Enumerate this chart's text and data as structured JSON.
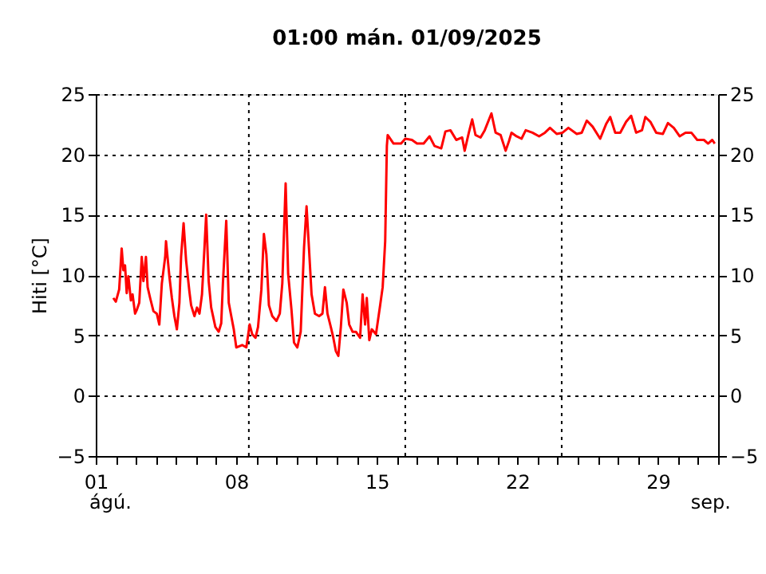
{
  "chart_data": {
    "type": "line",
    "title": "01:00   mán.  01/09/2025",
    "ylabel": "Hiti [°C]",
    "xlim": [
      "2025-08-01",
      "2025-09-01"
    ],
    "xticks": [
      {
        "value": "2025-08-01",
        "label": "01"
      },
      {
        "value": "2025-08-02",
        "label": null
      },
      {
        "value": "2025-08-03",
        "label": null
      },
      {
        "value": "2025-08-04",
        "label": null
      },
      {
        "value": "2025-08-05",
        "label": null
      },
      {
        "value": "2025-08-06",
        "label": null
      },
      {
        "value": "2025-08-07",
        "label": null
      },
      {
        "value": "2025-08-08",
        "label": "08"
      },
      {
        "value": "2025-08-09",
        "label": null
      },
      {
        "value": "2025-08-10",
        "label": null
      },
      {
        "value": "2025-08-11",
        "label": null
      },
      {
        "value": "2025-08-12",
        "label": null
      },
      {
        "value": "2025-08-13",
        "label": null
      },
      {
        "value": "2025-08-14",
        "label": null
      },
      {
        "value": "2025-08-15",
        "label": "15"
      },
      {
        "value": "2025-08-16",
        "label": null
      },
      {
        "value": "2025-08-17",
        "label": null
      },
      {
        "value": "2025-08-18",
        "label": null
      },
      {
        "value": "2025-08-19",
        "label": null
      },
      {
        "value": "2025-08-20",
        "label": null
      },
      {
        "value": "2025-08-21",
        "label": null
      },
      {
        "value": "2025-08-22",
        "label": "22"
      },
      {
        "value": "2025-08-23",
        "label": null
      },
      {
        "value": "2025-08-24",
        "label": null
      },
      {
        "value": "2025-08-25",
        "label": null
      },
      {
        "value": "2025-08-26",
        "label": null
      },
      {
        "value": "2025-08-27",
        "label": null
      },
      {
        "value": "2025-08-28",
        "label": null
      },
      {
        "value": "2025-08-29",
        "label": "29"
      },
      {
        "value": "2025-08-30",
        "label": null
      },
      {
        "value": "2025-08-31",
        "label": null
      },
      {
        "value": "2025-09-01",
        "label": null
      }
    ],
    "ylim": [
      -5,
      25
    ],
    "yticks": [
      -5,
      0,
      5,
      10,
      15,
      20,
      25
    ],
    "y2lim": [
      -5,
      25
    ],
    "y2ticks": [
      -5,
      0,
      5,
      10,
      15,
      20,
      25
    ],
    "grid": "y",
    "marker": "none",
    "line_style": "solid",
    "annotations": [
      "ágú.",
      "sep."
    ],
    "ref_lines": [
      {
        "axis": "x",
        "value": "2025-08-08T15:00",
        "color": "#000000",
        "line_style": "dotted"
      },
      {
        "axis": "x",
        "value": "2025-08-16T10:00",
        "color": "#000000",
        "line_style": "dotted"
      },
      {
        "axis": "x",
        "value": "2025-08-24T05:00",
        "color": "#000000",
        "line_style": "dotted"
      }
    ],
    "series": [
      {
        "color": "#ff0000",
        "x": [
          "2025-08-01T21:00",
          "2025-08-02T00:00",
          "2025-08-02T04:00",
          "2025-08-02T07:00",
          "2025-08-02T09:00",
          "2025-08-02T11:00",
          "2025-08-02T13:00",
          "2025-08-02T15:00",
          "2025-08-02T18:00",
          "2025-08-02T20:00",
          "2025-08-02T23:00",
          "2025-08-03T01:00",
          "2025-08-03T04:00",
          "2025-08-03T07:00",
          "2025-08-03T09:00",
          "2025-08-03T12:00",
          "2025-08-03T14:00",
          "2025-08-03T17:00",
          "2025-08-03T21:00",
          "2025-08-04T01:00",
          "2025-08-04T04:00",
          "2025-08-04T07:00",
          "2025-08-04T11:00",
          "2025-08-04T12:00",
          "2025-08-04T16:00",
          "2025-08-04T19:00",
          "2025-08-04T22:00",
          "2025-08-05T01:00",
          "2025-08-05T04:00",
          "2025-08-05T06:00",
          "2025-08-05T09:00",
          "2025-08-05T12:00",
          "2025-08-05T16:00",
          "2025-08-05T18:00",
          "2025-08-05T22:00",
          "2025-08-06T01:00",
          "2025-08-06T04:00",
          "2025-08-06T07:00",
          "2025-08-06T10:00",
          "2025-08-06T12:00",
          "2025-08-06T15:00",
          "2025-08-06T18:00",
          "2025-08-06T23:00",
          "2025-08-07T03:00",
          "2025-08-07T06:00",
          "2025-08-07T08:00",
          "2025-08-07T12:00",
          "2025-08-07T15:00",
          "2025-08-07T18:00",
          "2025-08-07T21:00",
          "2025-08-08T00:00",
          "2025-08-08T07:00",
          "2025-08-08T12:00",
          "2025-08-08T16:00",
          "2025-08-08T19:00",
          "2025-08-08T23:00",
          "2025-08-09T02:00",
          "2025-08-09T06:00",
          "2025-08-09T09:00",
          "2025-08-09T12:00",
          "2025-08-09T15:00",
          "2025-08-09T19:00",
          "2025-08-10T00:00",
          "2025-08-10T04:00",
          "2025-08-10T07:00",
          "2025-08-10T11:00",
          "2025-08-10T14:00",
          "2025-08-10T18:00",
          "2025-08-10T21:00",
          "2025-08-11T01:00",
          "2025-08-11T05:00",
          "2025-08-11T09:00",
          "2025-08-11T12:00",
          "2025-08-11T15:00",
          "2025-08-11T18:00",
          "2025-08-11T22:00",
          "2025-08-12T03:00",
          "2025-08-12T07:00",
          "2025-08-12T10:00",
          "2025-08-12T13:00",
          "2025-08-12T17:00",
          "2025-08-12T20:00",
          "2025-08-12T23:00",
          "2025-08-13T02:00",
          "2025-08-13T05:00",
          "2025-08-13T08:00",
          "2025-08-13T12:00",
          "2025-08-13T15:00",
          "2025-08-13T19:00",
          "2025-08-13T23:00",
          "2025-08-14T04:00",
          "2025-08-14T07:00",
          "2025-08-14T10:00",
          "2025-08-14T12:00",
          "2025-08-14T15:00",
          "2025-08-14T18:00",
          "2025-08-14T23:00",
          "2025-08-15T04:00",
          "2025-08-15T07:00",
          "2025-08-15T10:00",
          "2025-08-15T12:00",
          "2025-08-15T13:00",
          "2025-08-15T20:00",
          "2025-08-16T05:00",
          "2025-08-16T10:00",
          "2025-08-16T18:00",
          "2025-08-17T00:00",
          "2025-08-17T08:00",
          "2025-08-17T15:00",
          "2025-08-17T21:00",
          "2025-08-18T05:00",
          "2025-08-18T10:00",
          "2025-08-18T16:00",
          "2025-08-18T23:00",
          "2025-08-19T06:00",
          "2025-08-19T09:00",
          "2025-08-19T14:00",
          "2025-08-19T18:00",
          "2025-08-19T22:00",
          "2025-08-20T04:00",
          "2025-08-20T09:00",
          "2025-08-20T17:00",
          "2025-08-20T22:00",
          "2025-08-21T04:00",
          "2025-08-21T10:00",
          "2025-08-21T14:00",
          "2025-08-21T17:00",
          "2025-08-21T23:00",
          "2025-08-22T05:00",
          "2025-08-22T10:00",
          "2025-08-22T18:00",
          "2025-08-23T02:00",
          "2025-08-23T09:00",
          "2025-08-23T15:00",
          "2025-08-23T23:00",
          "2025-08-24T06:00",
          "2025-08-24T13:00",
          "2025-08-24T23:00",
          "2025-08-25T05:00",
          "2025-08-25T11:00",
          "2025-08-25T18:00",
          "2025-08-26T03:00",
          "2025-08-26T10:00",
          "2025-08-26T15:00",
          "2025-08-26T21:00",
          "2025-08-27T03:00",
          "2025-08-27T10:00",
          "2025-08-27T16:00",
          "2025-08-27T22:00",
          "2025-08-28T05:00",
          "2025-08-28T09:00",
          "2025-08-28T15:00",
          "2025-08-28T22:00",
          "2025-08-29T06:00",
          "2025-08-29T12:00",
          "2025-08-29T19:00",
          "2025-08-30T02:00",
          "2025-08-30T09:00",
          "2025-08-30T16:00",
          "2025-08-30T23:00",
          "2025-08-31T07:00",
          "2025-08-31T12:00",
          "2025-08-31T17:00",
          "2025-08-31T20:00"
        ],
        "values": [
          8.1,
          7.8,
          8.8,
          12.2,
          10.4,
          10.8,
          8.5,
          9.9,
          7.9,
          8.4,
          6.8,
          7.1,
          7.7,
          11.5,
          9.5,
          11.5,
          9.0,
          8.1,
          7.0,
          6.8,
          5.9,
          9.3,
          11.5,
          12.8,
          9.9,
          8.1,
          6.6,
          5.5,
          7.7,
          11.5,
          14.3,
          11.2,
          8.6,
          7.5,
          6.6,
          7.3,
          6.8,
          8.4,
          12.3,
          15.0,
          9.5,
          7.3,
          5.7,
          5.3,
          6.0,
          9.3,
          14.5,
          7.7,
          6.6,
          5.5,
          4.0,
          4.2,
          4.0,
          5.9,
          5.1,
          4.8,
          5.7,
          8.8,
          13.4,
          11.7,
          7.5,
          6.6,
          6.2,
          6.8,
          9.3,
          17.6,
          10.1,
          7.1,
          4.4,
          4.0,
          5.3,
          12.3,
          15.7,
          12.1,
          8.4,
          6.8,
          6.6,
          6.8,
          9.0,
          6.8,
          5.7,
          4.8,
          3.7,
          3.3,
          5.7,
          8.8,
          7.7,
          5.9,
          5.3,
          5.3,
          4.8,
          8.4,
          5.9,
          8.1,
          4.6,
          5.5,
          5.1,
          7.5,
          9.0,
          12.8,
          20.7,
          21.6,
          20.9,
          20.9,
          21.3,
          21.2,
          20.9,
          20.9,
          21.5,
          20.7,
          20.5,
          21.9,
          22.0,
          21.2,
          21.4,
          20.3,
          21.8,
          22.9,
          21.6,
          21.4,
          22.0,
          23.4,
          21.8,
          21.6,
          20.3,
          21.1,
          21.8,
          21.5,
          21.3,
          22.0,
          21.8,
          21.5,
          21.8,
          22.2,
          21.7,
          21.8,
          22.2,
          21.7,
          21.8,
          22.8,
          22.3,
          21.3,
          22.5,
          23.1,
          21.8,
          21.8,
          22.7,
          23.2,
          21.8,
          22.0,
          23.1,
          22.7,
          21.8,
          21.7,
          22.6,
          22.2,
          21.5,
          21.8,
          21.8,
          21.2,
          21.2,
          20.9,
          21.2,
          20.9
        ]
      }
    ]
  }
}
